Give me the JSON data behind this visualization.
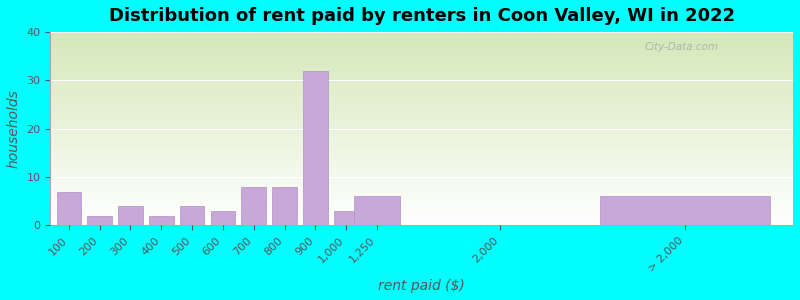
{
  "title": "Distribution of rent paid by renters in Coon Valley, WI in 2022",
  "xlabel": "rent paid ($)",
  "ylabel": "households",
  "background_color": "#00FFFF",
  "bar_color": "#c8a8d8",
  "bar_edgecolor": "#b090c0",
  "ylim": [
    0,
    40
  ],
  "yticks": [
    0,
    10,
    20,
    30,
    40
  ],
  "categories": [
    "100",
    "200",
    "300",
    "400",
    "500",
    "600",
    "700",
    "800",
    "900",
    "1,000",
    "1,250",
    "2,000",
    "> 2,000"
  ],
  "values": [
    7,
    2,
    4,
    2,
    4,
    3,
    8,
    8,
    32,
    3,
    6,
    0,
    6
  ],
  "x_positions": [
    0,
    1,
    2,
    3,
    4,
    5,
    6,
    7,
    8,
    9,
    10,
    14,
    20
  ],
  "bar_widths": [
    0.8,
    0.8,
    0.8,
    0.8,
    0.8,
    0.8,
    0.8,
    0.8,
    0.8,
    0.8,
    1.5,
    0,
    5.5
  ],
  "title_fontsize": 13,
  "axis_label_fontsize": 10,
  "tick_fontsize": 8,
  "grad_top_color": "#d4e8b8",
  "grad_bottom_color": "#f0f8e8"
}
